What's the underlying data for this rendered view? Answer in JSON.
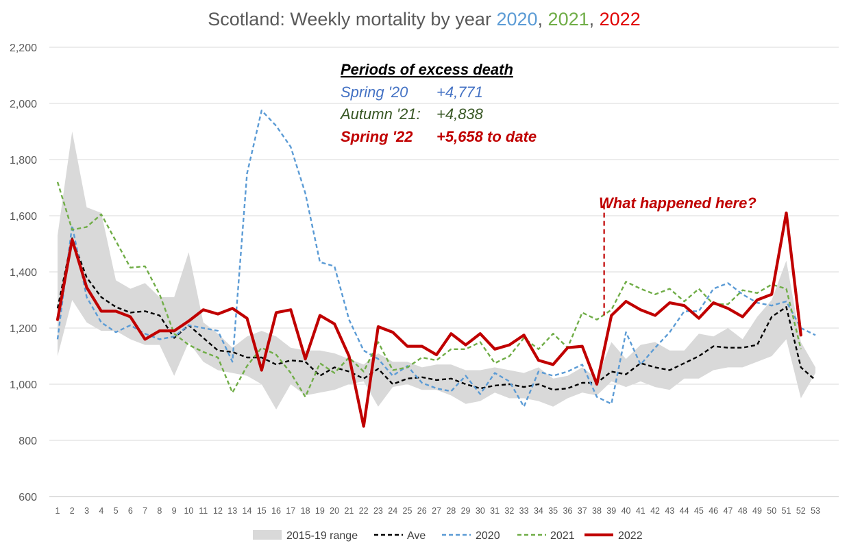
{
  "chart_data": {
    "type": "line",
    "title_parts": [
      {
        "text": "Scotland: Weekly mortality by year ",
        "color": "#595959"
      },
      {
        "text": "2020",
        "color": "#5b9bd5"
      },
      {
        "text": ", ",
        "color": "#595959"
      },
      {
        "text": "2021",
        "color": "#70ad47"
      },
      {
        "text": ", ",
        "color": "#595959"
      },
      {
        "text": "2022",
        "color": "#e00000"
      }
    ],
    "ylim": [
      600,
      2200
    ],
    "y_ticks": [
      "600",
      "800",
      "1,000",
      "1,200",
      "1,400",
      "1,600",
      "1,800",
      "2,000",
      "2,200"
    ],
    "y_tick_values": [
      600,
      800,
      1000,
      1200,
      1400,
      1600,
      1800,
      2000,
      2200
    ],
    "x": [
      1,
      2,
      3,
      4,
      5,
      6,
      7,
      8,
      9,
      10,
      11,
      12,
      13,
      14,
      15,
      16,
      17,
      18,
      19,
      20,
      21,
      22,
      23,
      24,
      25,
      26,
      27,
      28,
      29,
      30,
      31,
      32,
      33,
      34,
      35,
      36,
      37,
      38,
      39,
      40,
      41,
      42,
      43,
      44,
      45,
      46,
      47,
      48,
      49,
      50,
      51,
      52,
      53
    ],
    "x_tick_labels": [
      "1",
      "2",
      "3",
      "4",
      "5",
      "6",
      "7",
      "8",
      "9",
      "10",
      "11",
      "12",
      "13",
      "14",
      "15",
      "16",
      "17",
      "18",
      "19",
      "20",
      "21",
      "22",
      "23",
      "24",
      "25",
      "26",
      "27",
      "28",
      "29",
      "30",
      "31",
      "32",
      "33",
      "34",
      "35",
      "36",
      "37",
      "38",
      "39",
      "40",
      "41",
      "42",
      "43",
      "44",
      "45",
      "46",
      "47",
      "48",
      "49",
      "50",
      "51",
      "52",
      "53"
    ],
    "grid": "horizontal",
    "range_band": {
      "name": "2015-19 range",
      "color": "#d9d9d9",
      "x": [
        1,
        2,
        3,
        4,
        5,
        6,
        7,
        8,
        9,
        10,
        11,
        12,
        13,
        14,
        15,
        16,
        17,
        18,
        19,
        20,
        21,
        22,
        23,
        24,
        25,
        26,
        27,
        28,
        29,
        30,
        31,
        32,
        33,
        34,
        35,
        36,
        37,
        38,
        39,
        40,
        41,
        42,
        43,
        44,
        45,
        46,
        47,
        48,
        49,
        50,
        51,
        52,
        53
      ],
      "upper": [
        1530,
        1900,
        1630,
        1610,
        1370,
        1340,
        1360,
        1310,
        1310,
        1470,
        1220,
        1180,
        1130,
        1170,
        1190,
        1170,
        1130,
        1120,
        1120,
        1110,
        1090,
        1070,
        1110,
        1080,
        1080,
        1060,
        1070,
        1070,
        1050,
        1050,
        1060,
        1050,
        1040,
        1060,
        1020,
        1030,
        1060,
        1020,
        1150,
        1090,
        1140,
        1150,
        1120,
        1120,
        1180,
        1170,
        1200,
        1160,
        1240,
        1300,
        1440,
        1150,
        1060
      ],
      "lower": [
        1100,
        1300,
        1220,
        1190,
        1190,
        1160,
        1140,
        1140,
        1030,
        1150,
        1080,
        1050,
        1040,
        1030,
        1000,
        910,
        1000,
        960,
        970,
        980,
        1000,
        1010,
        920,
        990,
        1000,
        980,
        980,
        960,
        930,
        940,
        970,
        950,
        950,
        940,
        920,
        950,
        970,
        960,
        1010,
        990,
        1010,
        990,
        980,
        1020,
        1020,
        1050,
        1060,
        1060,
        1080,
        1100,
        1160,
        950,
        1040
      ]
    },
    "series": [
      {
        "name": "Ave",
        "color": "#000000",
        "dash": "6,4",
        "width": 2.4,
        "x": [
          1,
          2,
          3,
          4,
          5,
          6,
          7,
          8,
          9,
          10,
          11,
          12,
          13,
          14,
          15,
          16,
          17,
          18,
          19,
          20,
          21,
          22,
          23,
          24,
          25,
          26,
          27,
          28,
          29,
          30,
          31,
          32,
          33,
          34,
          35,
          36,
          37,
          38,
          39,
          40,
          41,
          42,
          43,
          44,
          45,
          46,
          47,
          48,
          49,
          50,
          51,
          52,
          53
        ],
        "values": [
          1270,
          1520,
          1380,
          1310,
          1275,
          1255,
          1260,
          1245,
          1165,
          1210,
          1165,
          1120,
          1115,
          1095,
          1095,
          1070,
          1085,
          1080,
          1030,
          1060,
          1045,
          1020,
          1055,
          1000,
          1020,
          1025,
          1015,
          1020,
          1000,
          985,
          995,
          1000,
          990,
          1000,
          980,
          985,
          1005,
          1005,
          1045,
          1035,
          1075,
          1060,
          1050,
          1075,
          1100,
          1135,
          1130,
          1130,
          1140,
          1240,
          1275,
          1060,
          1015
        ]
      },
      {
        "name": "2020",
        "color": "#5b9bd5",
        "dash": "6,4",
        "width": 2.4,
        "x": [
          1,
          2,
          3,
          4,
          5,
          6,
          7,
          8,
          9,
          10,
          11,
          12,
          13,
          14,
          15,
          16,
          17,
          18,
          19,
          20,
          21,
          22,
          23,
          24,
          25,
          26,
          27,
          28,
          29,
          30,
          31,
          32,
          33,
          34,
          35,
          36,
          37,
          38,
          39,
          40,
          41,
          42,
          43,
          44,
          45,
          46,
          47,
          48,
          49,
          50,
          51,
          52,
          53
        ],
        "values": [
          1160,
          1565,
          1310,
          1220,
          1185,
          1210,
          1180,
          1160,
          1170,
          1210,
          1200,
          1190,
          1080,
          1750,
          1975,
          1920,
          1845,
          1680,
          1435,
          1420,
          1230,
          1120,
          1090,
          1030,
          1065,
          1005,
          985,
          975,
          1030,
          965,
          1040,
          1010,
          920,
          1045,
          1030,
          1045,
          1070,
          955,
          930,
          1185,
          1070,
          1130,
          1185,
          1260,
          1260,
          1340,
          1360,
          1320,
          1290,
          1280,
          1295,
          1200,
          1175
        ]
      },
      {
        "name": "2021",
        "color": "#70ad47",
        "dash": "6,4",
        "width": 2.4,
        "x": [
          1,
          2,
          3,
          4,
          5,
          6,
          7,
          8,
          9,
          10,
          11,
          12,
          13,
          14,
          15,
          16,
          17,
          18,
          19,
          20,
          21,
          22,
          23,
          24,
          25,
          26,
          27,
          28,
          29,
          30,
          31,
          32,
          33,
          34,
          35,
          36,
          37,
          38,
          39,
          40,
          41,
          42,
          43,
          44,
          45,
          46,
          47,
          48,
          49,
          50,
          51,
          52
        ],
        "values": [
          1720,
          1550,
          1560,
          1605,
          1510,
          1415,
          1420,
          1320,
          1180,
          1140,
          1115,
          1095,
          970,
          1065,
          1130,
          1105,
          1040,
          955,
          1075,
          1040,
          1095,
          1045,
          1150,
          1050,
          1060,
          1095,
          1085,
          1125,
          1125,
          1150,
          1075,
          1100,
          1165,
          1125,
          1180,
          1130,
          1255,
          1230,
          1265,
          1365,
          1340,
          1320,
          1340,
          1295,
          1340,
          1285,
          1285,
          1335,
          1325,
          1355,
          1340,
          1125
        ]
      },
      {
        "name": "2022",
        "color": "#c00000",
        "dash": "",
        "width": 4.2,
        "x": [
          1,
          2,
          3,
          4,
          5,
          6,
          7,
          8,
          9,
          10,
          11,
          12,
          13,
          14,
          15,
          16,
          17,
          18,
          19,
          20,
          21,
          22,
          23,
          24,
          25,
          26,
          27,
          28,
          29,
          30,
          31,
          32,
          33,
          34,
          35,
          36,
          37,
          38,
          39,
          40,
          41,
          42,
          43,
          44,
          45,
          46,
          47,
          48,
          49,
          50,
          51,
          52
        ],
        "values": [
          1230,
          1515,
          1345,
          1260,
          1260,
          1240,
          1160,
          1190,
          1190,
          1225,
          1265,
          1250,
          1270,
          1235,
          1050,
          1255,
          1265,
          1090,
          1245,
          1215,
          1100,
          850,
          1205,
          1185,
          1135,
          1135,
          1105,
          1180,
          1140,
          1180,
          1125,
          1140,
          1175,
          1085,
          1070,
          1130,
          1135,
          1000,
          1245,
          1295,
          1265,
          1245,
          1290,
          1280,
          1235,
          1290,
          1270,
          1240,
          1300,
          1320,
          1610,
          1175
        ]
      }
    ],
    "legend_entries": [
      "2015-19 range",
      "Ave",
      "2020",
      "2021",
      "2022"
    ],
    "legend_position": "bottom",
    "annotations": {
      "heading": "Periods of excess death",
      "lines": [
        {
          "label": "Spring '20",
          "value": "+4,771",
          "color": "#4472c4",
          "weight": "normal"
        },
        {
          "label": "Autumn '21:",
          "value": "+4,838",
          "color": "#375623",
          "weight": "normal"
        },
        {
          "label": "Spring '22",
          "value": "+5,658 to date",
          "color": "#c00000",
          "weight": "bold"
        }
      ],
      "question": "What happened here?",
      "question_color": "#c00000",
      "marker_week": 38.5,
      "marker_from": 1640,
      "marker_to": 1245
    }
  }
}
